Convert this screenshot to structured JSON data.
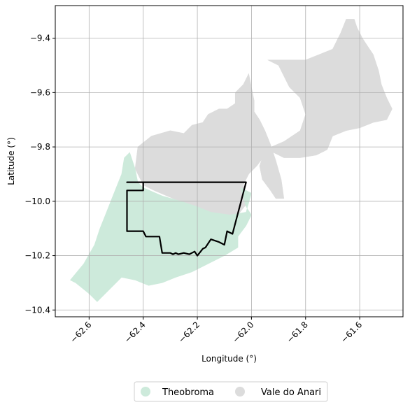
{
  "chart_data": {
    "type": "map",
    "xlabel": "Longitude (°)",
    "ylabel": "Latitude (°)",
    "xlim": [
      -62.725,
      -61.44
    ],
    "ylim": [
      -10.425,
      -9.28
    ],
    "x_ticks": [
      -62.6,
      -62.4,
      -62.2,
      -62.0,
      -61.8,
      -61.6
    ],
    "x_tick_labels": [
      "−62.6",
      "−62.4",
      "−62.2",
      "−62.0",
      "−61.8",
      "−61.6"
    ],
    "y_ticks": [
      -9.4,
      -9.6,
      -9.8,
      -10.0,
      -10.2,
      -10.4
    ],
    "y_tick_labels": [
      "−9.4",
      "−9.6",
      "−9.8",
      "−10.0",
      "−10.2",
      "−10.4"
    ],
    "grid": true,
    "legend_position": "bottom-center",
    "legend": [
      {
        "label": "Theobroma",
        "color": "#cdeadb"
      },
      {
        "label": "Vale do Anari",
        "color": "#dcdcdc"
      }
    ],
    "regions": [
      {
        "name": "Vale do Anari",
        "color": "#dcdcdc",
        "coords": [
          [
            -62.42,
            -9.8
          ],
          [
            -62.37,
            -9.76
          ],
          [
            -62.3,
            -9.74
          ],
          [
            -62.25,
            -9.75
          ],
          [
            -62.22,
            -9.72
          ],
          [
            -62.18,
            -9.71
          ],
          [
            -62.16,
            -9.68
          ],
          [
            -62.12,
            -9.66
          ],
          [
            -62.09,
            -9.66
          ],
          [
            -62.06,
            -9.64
          ],
          [
            -62.06,
            -9.6
          ],
          [
            -62.03,
            -9.57
          ],
          [
            -62.01,
            -9.53
          ],
          [
            -62.0,
            -9.58
          ],
          [
            -61.99,
            -9.63
          ],
          [
            -61.99,
            -9.67
          ],
          [
            -61.97,
            -9.7
          ],
          [
            -61.95,
            -9.74
          ],
          [
            -61.93,
            -9.79
          ],
          [
            -61.91,
            -9.85
          ],
          [
            -61.89,
            -9.92
          ],
          [
            -61.88,
            -9.99
          ],
          [
            -61.91,
            -9.99
          ],
          [
            -61.93,
            -9.96
          ],
          [
            -61.96,
            -9.92
          ],
          [
            -61.97,
            -9.87
          ],
          [
            -61.95,
            -9.81
          ],
          [
            -61.88,
            -9.78
          ],
          [
            -61.82,
            -9.74
          ],
          [
            -61.8,
            -9.68
          ],
          [
            -61.82,
            -9.62
          ],
          [
            -61.86,
            -9.58
          ],
          [
            -61.9,
            -9.5
          ],
          [
            -61.94,
            -9.48
          ],
          [
            -61.8,
            -9.48
          ],
          [
            -61.75,
            -9.46
          ],
          [
            -61.7,
            -9.44
          ],
          [
            -61.67,
            -9.38
          ],
          [
            -61.65,
            -9.33
          ],
          [
            -61.62,
            -9.33
          ],
          [
            -61.61,
            -9.36
          ],
          [
            -61.59,
            -9.4
          ],
          [
            -61.57,
            -9.43
          ],
          [
            -61.55,
            -9.46
          ],
          [
            -61.53,
            -9.52
          ],
          [
            -61.52,
            -9.57
          ],
          [
            -61.5,
            -9.62
          ],
          [
            -61.48,
            -9.66
          ],
          [
            -61.5,
            -9.7
          ],
          [
            -61.55,
            -9.71
          ],
          [
            -61.6,
            -9.73
          ],
          [
            -61.65,
            -9.74
          ],
          [
            -61.7,
            -9.76
          ],
          [
            -61.72,
            -9.81
          ],
          [
            -61.76,
            -9.83
          ],
          [
            -61.82,
            -9.84
          ],
          [
            -61.88,
            -9.84
          ],
          [
            -61.92,
            -9.82
          ],
          [
            -61.95,
            -9.83
          ],
          [
            -61.98,
            -9.87
          ],
          [
            -62.01,
            -9.9
          ],
          [
            -62.03,
            -9.94
          ],
          [
            -62.01,
            -10.0
          ],
          [
            -62.05,
            -10.05
          ],
          [
            -62.1,
            -10.06
          ],
          [
            -62.16,
            -10.04
          ],
          [
            -62.22,
            -10.02
          ],
          [
            -62.29,
            -9.99
          ],
          [
            -62.36,
            -9.96
          ],
          [
            -62.4,
            -9.94
          ],
          [
            -62.43,
            -9.88
          ]
        ]
      },
      {
        "name": "Theobroma",
        "color": "#cdeadb",
        "coords": [
          [
            -62.45,
            -9.82
          ],
          [
            -62.43,
            -9.88
          ],
          [
            -62.42,
            -9.93
          ],
          [
            -62.4,
            -9.95
          ],
          [
            -62.33,
            -9.98
          ],
          [
            -62.26,
            -10.0
          ],
          [
            -62.2,
            -10.02
          ],
          [
            -62.15,
            -10.04
          ],
          [
            -62.08,
            -10.05
          ],
          [
            -62.02,
            -10.04
          ],
          [
            -62.0,
            -9.97
          ],
          [
            -62.04,
            -9.95
          ],
          [
            -62.02,
            -10.02
          ],
          [
            -62.0,
            -10.05
          ],
          [
            -62.02,
            -10.09
          ],
          [
            -62.05,
            -10.13
          ],
          [
            -62.05,
            -10.17
          ],
          [
            -62.1,
            -10.2
          ],
          [
            -62.14,
            -10.22
          ],
          [
            -62.18,
            -10.24
          ],
          [
            -62.22,
            -10.26
          ],
          [
            -62.28,
            -10.28
          ],
          [
            -62.33,
            -10.3
          ],
          [
            -62.38,
            -10.31
          ],
          [
            -62.43,
            -10.29
          ],
          [
            -62.48,
            -10.28
          ],
          [
            -62.52,
            -10.32
          ],
          [
            -62.57,
            -10.37
          ],
          [
            -62.6,
            -10.34
          ],
          [
            -62.65,
            -10.3
          ],
          [
            -62.67,
            -10.29
          ],
          [
            -62.62,
            -10.23
          ],
          [
            -62.58,
            -10.16
          ],
          [
            -62.56,
            -10.1
          ],
          [
            -62.54,
            -10.05
          ],
          [
            -62.52,
            -10.0
          ],
          [
            -62.5,
            -9.95
          ],
          [
            -62.48,
            -9.9
          ],
          [
            -62.47,
            -9.84
          ]
        ]
      }
    ],
    "outline": {
      "color": "#000000",
      "coords": [
        [
          -62.46,
          -9.93
        ],
        [
          -62.02,
          -9.93
        ],
        [
          -62.07,
          -10.12
        ],
        [
          -62.09,
          -10.11
        ],
        [
          -62.1,
          -10.16
        ],
        [
          -62.12,
          -10.15
        ],
        [
          -62.15,
          -10.14
        ],
        [
          -62.17,
          -10.17
        ],
        [
          -62.18,
          -10.175
        ],
        [
          -62.2,
          -10.2
        ],
        [
          -62.21,
          -10.185
        ],
        [
          -62.22,
          -10.19
        ],
        [
          -62.23,
          -10.195
        ],
        [
          -62.25,
          -10.19
        ],
        [
          -62.27,
          -10.195
        ],
        [
          -62.28,
          -10.19
        ],
        [
          -62.29,
          -10.195
        ],
        [
          -62.3,
          -10.19
        ],
        [
          -62.33,
          -10.19
        ],
        [
          -62.34,
          -10.13
        ],
        [
          -62.39,
          -10.13
        ],
        [
          -62.4,
          -10.11
        ],
        [
          -62.46,
          -10.11
        ],
        [
          -62.46,
          -9.96
        ],
        [
          -62.4,
          -9.96
        ],
        [
          -62.4,
          -9.93
        ]
      ]
    }
  }
}
